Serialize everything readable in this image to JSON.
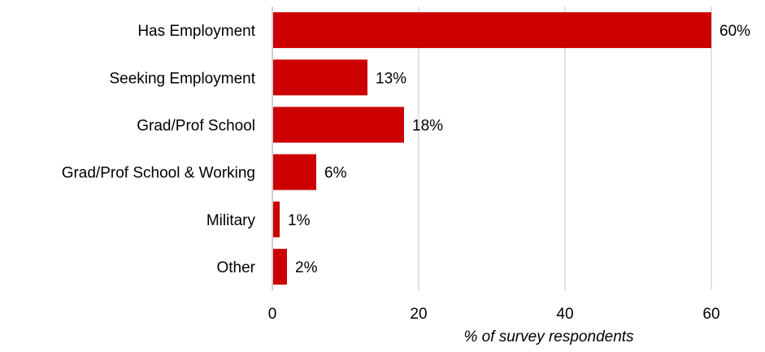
{
  "chart_data": {
    "type": "bar",
    "orientation": "horizontal",
    "categories": [
      "Has Employment",
      "Seeking Employment",
      "Grad/Prof School",
      "Grad/Prof School & Working",
      "Military",
      "Other"
    ],
    "values": [
      60,
      13,
      18,
      6,
      1,
      2
    ],
    "data_labels": [
      "60%",
      "13%",
      "18%",
      "6%",
      "1%",
      "2%"
    ],
    "xlabel": "% of survey respondents",
    "ylabel": "",
    "xlim": [
      0,
      60
    ],
    "xticks": [
      0,
      20,
      40,
      60
    ],
    "xtick_labels": [
      "0",
      "20",
      "40",
      "60"
    ],
    "grid": "vertical",
    "legend": "none",
    "bar_color": "#cc0000"
  }
}
